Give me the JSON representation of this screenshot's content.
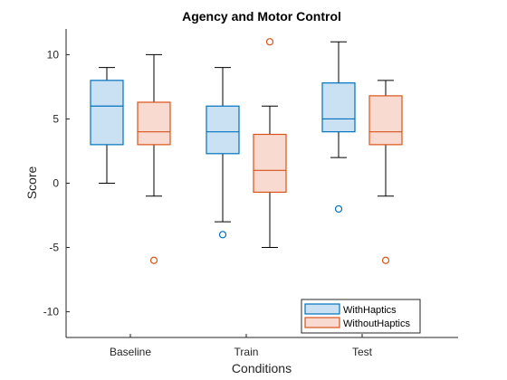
{
  "chart_data": {
    "type": "box",
    "title": "Agency and Motor Control",
    "xlabel": "Conditions",
    "ylabel": "Score",
    "ylim": [
      -12,
      12
    ],
    "yticks": [
      -10,
      -5,
      0,
      5,
      10
    ],
    "categories": [
      "Baseline",
      "Train",
      "Test"
    ],
    "legend_position": "bottom-right",
    "series": [
      {
        "name": "WithHaptics",
        "color": "#0072BD",
        "fill": "#C9E1F2",
        "boxes": [
          {
            "whisker_low": 0,
            "q1": 3,
            "median": 6,
            "q3": 8,
            "whisker_high": 9,
            "outliers": []
          },
          {
            "whisker_low": -3,
            "q1": 2.3,
            "median": 4,
            "q3": 6,
            "whisker_high": 9,
            "outliers": [
              -4
            ]
          },
          {
            "whisker_low": 2,
            "q1": 4,
            "median": 5,
            "q3": 7.8,
            "whisker_high": 11,
            "outliers": [
              -2
            ]
          }
        ]
      },
      {
        "name": "WithoutHaptics",
        "color": "#D95319",
        "fill": "#F8DAD0",
        "boxes": [
          {
            "whisker_low": -1,
            "q1": 3,
            "median": 4,
            "q3": 6.3,
            "whisker_high": 10,
            "outliers": [
              -6
            ]
          },
          {
            "whisker_low": -5,
            "q1": -0.7,
            "median": 1,
            "q3": 3.8,
            "whisker_high": 6,
            "outliers": [
              11
            ]
          },
          {
            "whisker_low": -1,
            "q1": 3,
            "median": 4,
            "q3": 6.8,
            "whisker_high": 8,
            "outliers": [
              -6
            ]
          }
        ]
      }
    ]
  }
}
